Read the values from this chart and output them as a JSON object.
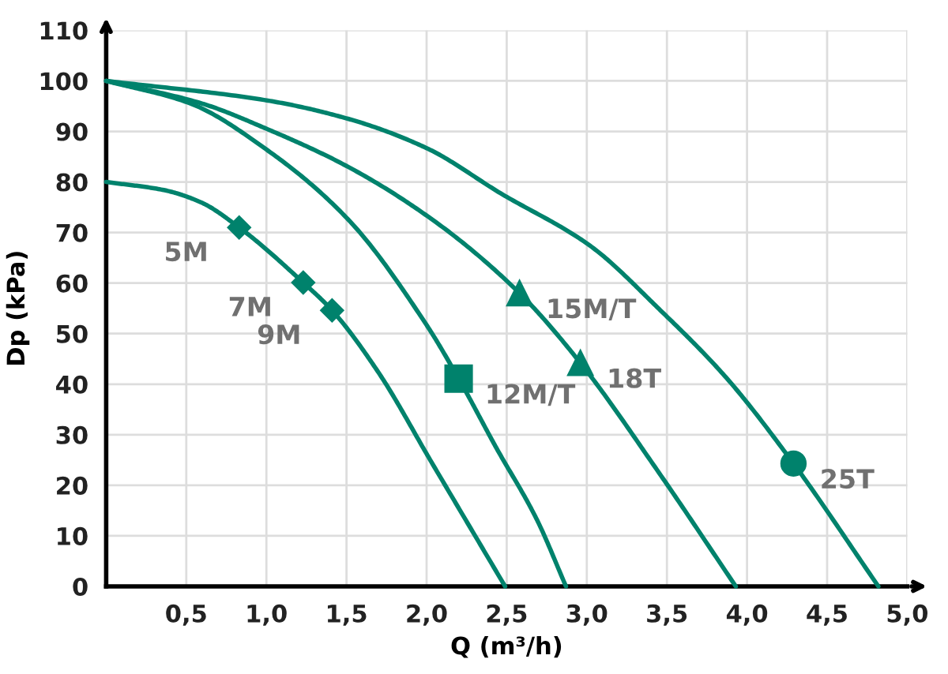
{
  "chart_data": {
    "type": "line",
    "xlabel": "Q (m³/h)",
    "ylabel": "Dp (kPa)",
    "xlim": [
      0,
      5
    ],
    "ylim": [
      0,
      110
    ],
    "xticks": [
      {
        "value": 0.5,
        "label": "0,5"
      },
      {
        "value": 1,
        "label": "1,0"
      },
      {
        "value": 1.5,
        "label": "1,5"
      },
      {
        "value": 2,
        "label": "2,0"
      },
      {
        "value": 2.5,
        "label": "2,5"
      },
      {
        "value": 3,
        "label": "3,0"
      },
      {
        "value": 3.5,
        "label": "3,5"
      },
      {
        "value": 4,
        "label": "4,0"
      },
      {
        "value": 4.5,
        "label": "4,5"
      },
      {
        "value": 5,
        "label": "5,0"
      }
    ],
    "yticks": [
      0,
      10,
      20,
      30,
      40,
      50,
      60,
      70,
      80,
      90,
      100,
      110
    ],
    "grid": true,
    "legend": false,
    "marker": "none",
    "line_style": "solid",
    "series": [
      {
        "color": "#00826c",
        "x": [
          0,
          0.36,
          0.59,
          0.83,
          1.23,
          1.41,
          1.7,
          2.03,
          2.49
        ],
        "values": [
          80,
          78.4,
          76,
          71,
          60.1,
          54.6,
          42.3,
          24.6,
          0
        ]
      },
      {
        "color": "#00826c",
        "x": [
          0,
          0.52,
          1.01,
          1.51,
          2.0,
          2.2,
          2.43,
          2.69,
          2.87
        ],
        "values": [
          100,
          95.6,
          86.2,
          72.6,
          51.7,
          41.1,
          27.7,
          13.1,
          0
        ]
      },
      {
        "color": "#00826c",
        "x": [
          0,
          0.59,
          1.01,
          1.51,
          2.06,
          2.58,
          2.96,
          3.45,
          3.93
        ],
        "values": [
          100,
          95.6,
          90.4,
          83,
          72,
          58,
          44.2,
          22.5,
          0
        ]
      },
      {
        "color": "#00826c",
        "x": [
          0,
          1.01,
          1.51,
          2.0,
          2.46,
          3.02,
          3.45,
          3.87,
          4.29,
          4.82
        ],
        "values": [
          100,
          96.1,
          92.5,
          86.7,
          77.8,
          67.4,
          54.9,
          41.3,
          24.3,
          0
        ]
      },
      {
        "type": "scatter",
        "name": "5M",
        "marker": "diamond",
        "color": "#00826c",
        "x": [
          0.83
        ],
        "values": [
          71
        ]
      },
      {
        "type": "scatter",
        "name": "7M",
        "marker": "diamond",
        "color": "#00826c",
        "x": [
          1.23
        ],
        "values": [
          60.1
        ]
      },
      {
        "type": "scatter",
        "name": "9M",
        "marker": "diamond",
        "color": "#00826c",
        "x": [
          1.41
        ],
        "values": [
          54.6
        ]
      },
      {
        "type": "scatter",
        "name": "12M/T",
        "marker": "square",
        "color": "#00826c",
        "x": [
          2.2
        ],
        "values": [
          41.1
        ]
      },
      {
        "type": "scatter",
        "name": "15M/T",
        "marker": "triangle",
        "color": "#00826c",
        "x": [
          2.58
        ],
        "values": [
          58
        ]
      },
      {
        "type": "scatter",
        "name": "18T",
        "marker": "triangle",
        "color": "#00826c",
        "x": [
          2.96
        ],
        "values": [
          44.2
        ]
      },
      {
        "type": "scatter",
        "name": "25T",
        "marker": "circle",
        "color": "#00826c",
        "x": [
          4.29
        ],
        "values": [
          24.3
        ]
      }
    ]
  }
}
